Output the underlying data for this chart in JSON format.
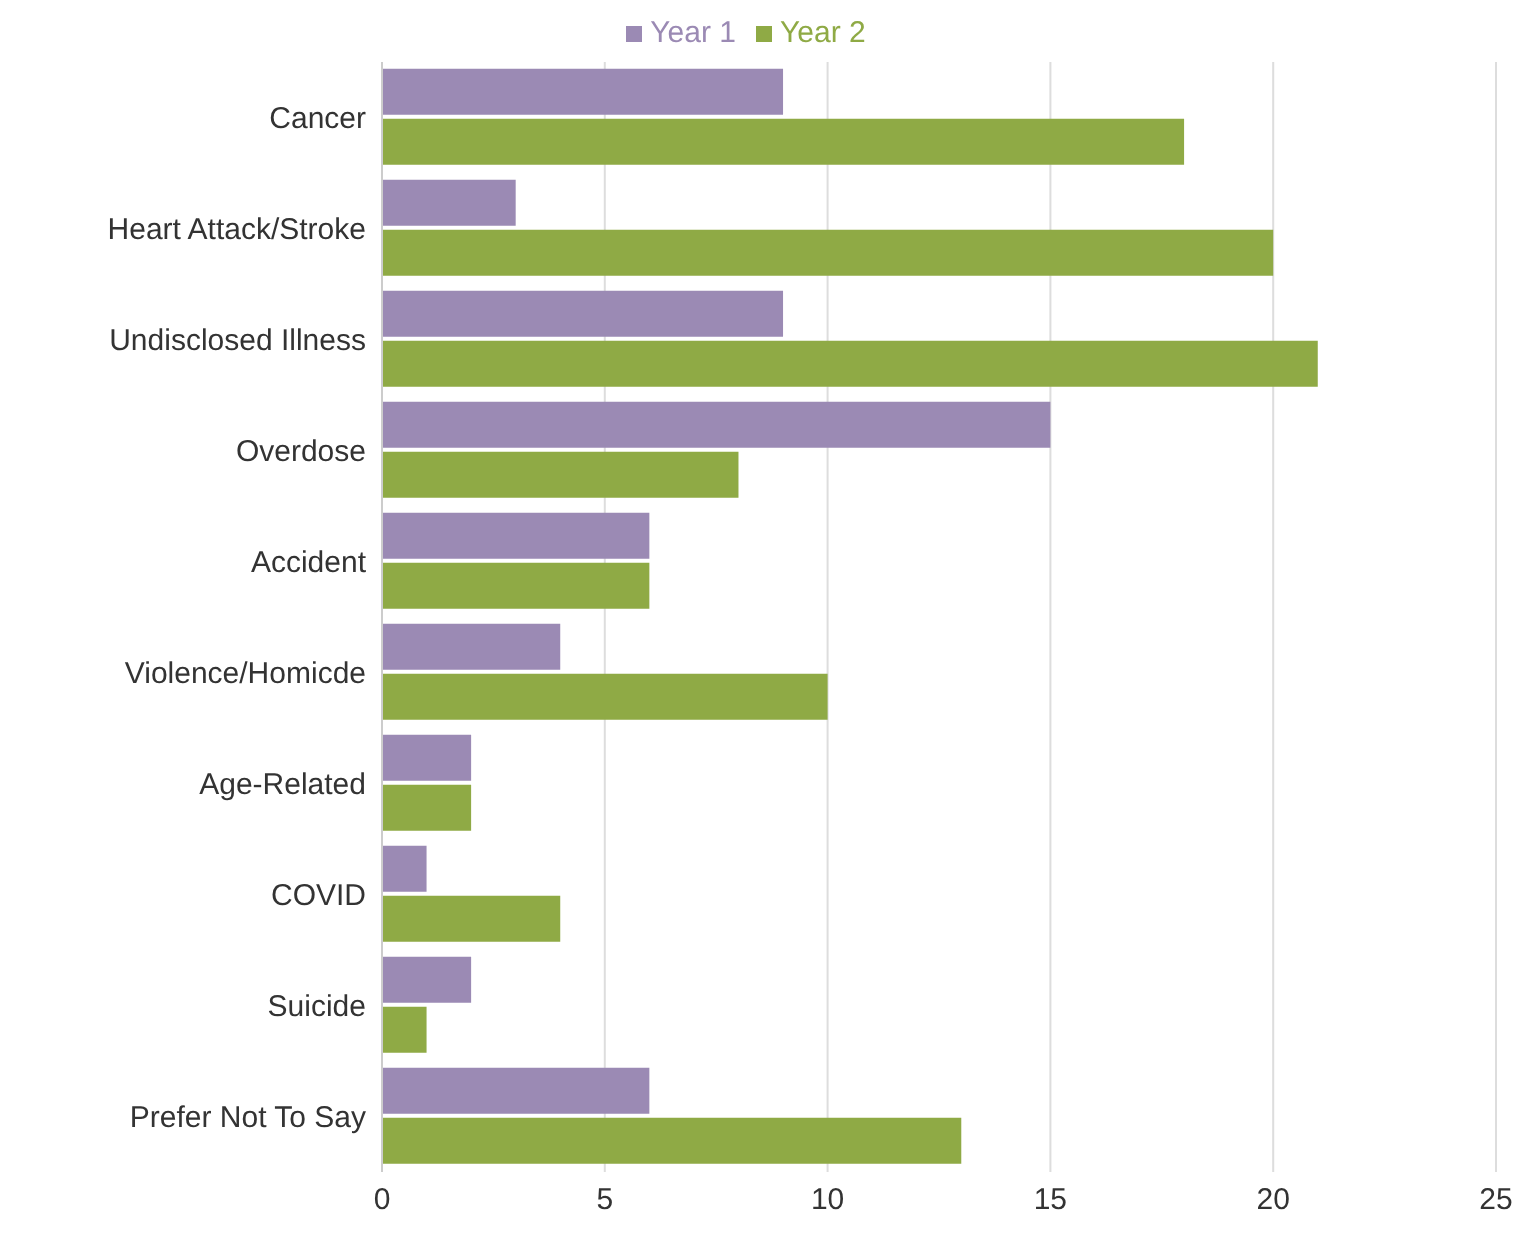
{
  "chart_data": {
    "type": "bar",
    "orientation": "horizontal",
    "categories": [
      "Cancer",
      "Heart Attack/Stroke",
      "Undisclosed Illness",
      "Overdose",
      "Accident",
      "Violence/Homicde",
      "Age-Related",
      "COVID",
      "Suicide",
      "Prefer Not To Say"
    ],
    "series": [
      {
        "name": "Year 1",
        "color": "#9b8ab4",
        "values": [
          9,
          3,
          9,
          15,
          6,
          4,
          2,
          1,
          2,
          6
        ]
      },
      {
        "name": "Year 2",
        "color": "#8faa45",
        "values": [
          18,
          20,
          21,
          8,
          6,
          10,
          2,
          4,
          1,
          13
        ]
      }
    ],
    "xlim": [
      0,
      25
    ],
    "xticks": [
      0,
      5,
      10,
      15,
      20,
      25
    ],
    "grid": "x",
    "legend": "top"
  }
}
